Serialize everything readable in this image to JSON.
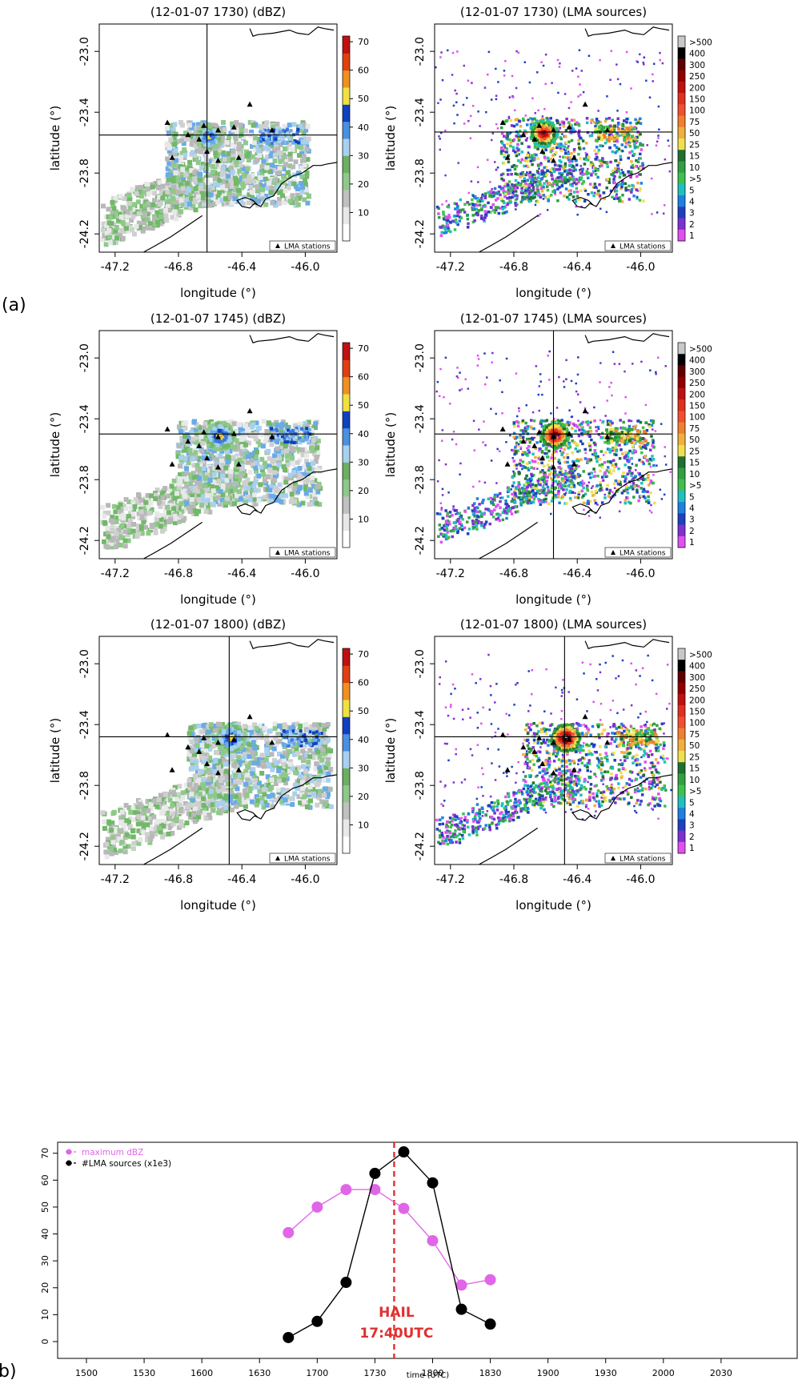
{
  "figure": {
    "panel_labels": [
      "(a)",
      "b)"
    ],
    "map_legend_label": "LMA stations",
    "map_xlabel": "longitude (°)",
    "map_ylabel": "latitude (°)",
    "map_xticks": [
      "-47.2",
      "-46.8",
      "-46.4",
      "-46.0"
    ],
    "map_yticks": [
      "-23.0",
      "-23.4",
      "-23.8",
      "-24.2"
    ],
    "dbz_colorbar_ticks": [
      "70",
      "60",
      "50",
      "40",
      "30",
      "20",
      "10"
    ],
    "dbz_colorbar_colors": [
      "#ffffff",
      "#e8e8e8",
      "#c0c0c0",
      "#8fc98a",
      "#6bb060",
      "#a8d0f0",
      "#4a90e0",
      "#1040c0",
      "#f0e040",
      "#f09020",
      "#e04010",
      "#c01010"
    ],
    "lma_colorbar_labels": [
      ">500",
      "400",
      "300",
      "250",
      "200",
      "150",
      "100",
      "75",
      "50",
      "25",
      "15",
      "10",
      ">5",
      "5",
      "4",
      "3",
      "2",
      "1"
    ],
    "lma_colorbar_colors": [
      "#c8c8c8",
      "#000000",
      "#600000",
      "#900000",
      "#c01010",
      "#e03020",
      "#f05030",
      "#f08030",
      "#f0b040",
      "#f0e050",
      "#207030",
      "#30a040",
      "#40c050",
      "#20c0c0",
      "#2080e0",
      "#2040c0",
      "#8030d0",
      "#e050f0"
    ]
  },
  "map_panels": [
    {
      "title": "(12-01-07 1730) (dBZ)",
      "kind": "dbz",
      "crosshair": [
        -46.62,
        -23.55
      ],
      "storm_center": [
        -46.62,
        -23.55
      ],
      "storm_intensity": 3
    },
    {
      "title": "(12-01-07 1730) (LMA sources)",
      "kind": "lma",
      "crosshair": null,
      "storm_center": [
        -46.62,
        -23.53
      ],
      "storm_intensity": 3
    },
    {
      "title": "(12-01-07 1745) (dBZ)",
      "kind": "dbz",
      "crosshair": null,
      "storm_center": [
        -46.55,
        -23.5
      ],
      "storm_intensity": 4
    },
    {
      "title": "(12-01-07 1745) (LMA sources)",
      "kind": "lma",
      "crosshair": [
        -46.55,
        -23.5
      ],
      "storm_center": [
        -46.55,
        -23.5
      ],
      "storm_intensity": 4
    },
    {
      "title": "(12-01-07 1800) (dBZ)",
      "kind": "dbz",
      "crosshair": [
        -46.48,
        -23.48
      ],
      "storm_center": [
        -46.48,
        -23.48
      ],
      "storm_intensity": 4
    },
    {
      "title": "(12-01-07 1800) (LMA sources)",
      "kind": "lma",
      "crosshair": [
        -46.48,
        -23.48
      ],
      "storm_center": [
        -46.48,
        -23.48
      ],
      "storm_intensity": 5
    }
  ],
  "chart_data": {
    "type": "line",
    "xlabel": "time (UTC)",
    "ylabel": "",
    "x_ticks": [
      "1500",
      "1530",
      "1600",
      "1630",
      "1700",
      "1730",
      "1800",
      "1830",
      "1900",
      "1930",
      "2000",
      "2030"
    ],
    "x": [
      "1645",
      "1700",
      "1715",
      "1730",
      "1745",
      "1800",
      "1815",
      "1830"
    ],
    "yticks": [
      0,
      10,
      20,
      30,
      40,
      50,
      60,
      70
    ],
    "ylim": [
      0,
      72
    ],
    "series": [
      {
        "name": "maximum dBZ",
        "color": "#e066e8",
        "x": [
          "1645",
          "1700",
          "1715",
          "1730",
          "1745",
          "1800",
          "1815",
          "1830"
        ],
        "values": [
          40.5,
          50,
          56.5,
          56.5,
          49.5,
          37.5,
          21,
          23
        ]
      },
      {
        "name": "#LMA sources (x1e3)",
        "color": "#000000",
        "x": [
          "1645",
          "1700",
          "1715",
          "1730",
          "1745",
          "1800",
          "1815",
          "1830"
        ],
        "values": [
          1.5,
          7.5,
          22,
          62.5,
          70.5,
          59,
          12,
          6.5
        ]
      }
    ],
    "annotation": {
      "line1": "HAIL",
      "line2": "17:40UTC",
      "x": "1740",
      "color": "#e03030"
    },
    "legend_position": "top-left"
  }
}
